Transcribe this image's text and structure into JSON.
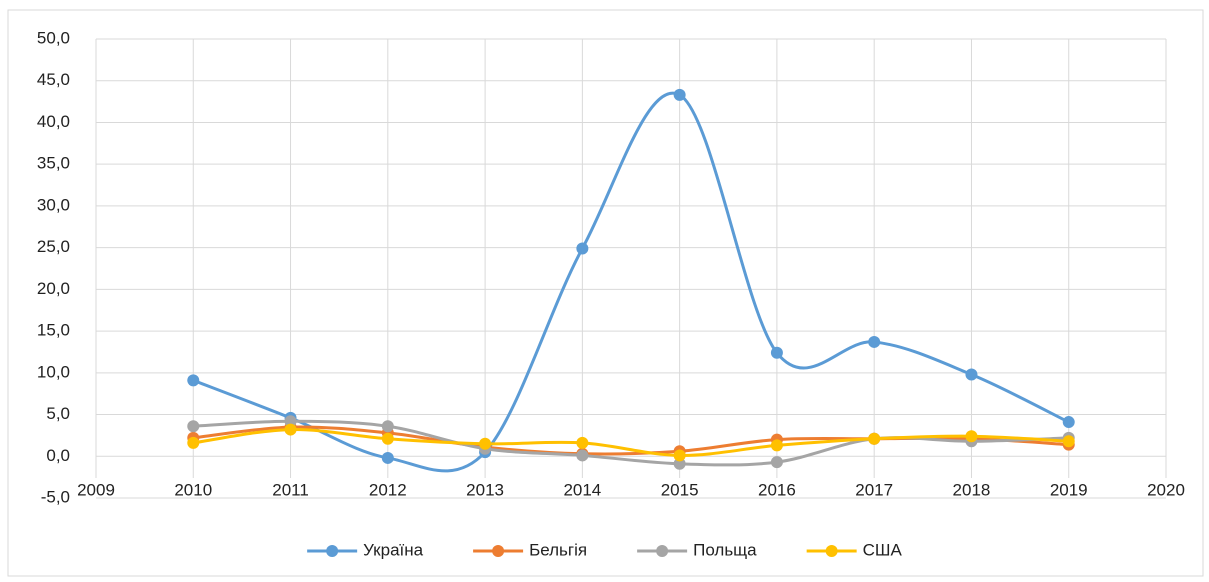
{
  "chart_data": {
    "type": "line",
    "x": [
      2010,
      2011,
      2012,
      2013,
      2014,
      2015,
      2016,
      2017,
      2018,
      2019
    ],
    "series": [
      {
        "name": "Україна",
        "color": "#5b9bd5",
        "values": [
          9.1,
          4.6,
          -0.2,
          0.5,
          24.9,
          43.3,
          12.4,
          13.7,
          9.8,
          4.1
        ]
      },
      {
        "name": "Бельгія",
        "color": "#ed7d31",
        "values": [
          2.2,
          3.5,
          2.8,
          1.1,
          0.3,
          0.6,
          2.0,
          2.1,
          2.1,
          1.4
        ]
      },
      {
        "name": "Польща",
        "color": "#a5a5a5",
        "values": [
          3.6,
          4.2,
          3.6,
          0.9,
          0.1,
          -0.9,
          -0.7,
          2.1,
          1.8,
          2.2
        ]
      },
      {
        "name": "США",
        "color": "#ffc000",
        "values": [
          1.6,
          3.2,
          2.1,
          1.5,
          1.6,
          0.1,
          1.3,
          2.1,
          2.4,
          1.8
        ]
      }
    ],
    "xlim": [
      2009,
      2020
    ],
    "xticks": [
      2009,
      2010,
      2011,
      2012,
      2013,
      2014,
      2015,
      2016,
      2017,
      2018,
      2019,
      2020
    ],
    "ylim": [
      -5,
      50
    ],
    "yticks": [
      {
        "value": -5,
        "label": "-5,0"
      },
      {
        "value": 0,
        "label": "0,0"
      },
      {
        "value": 5,
        "label": "5,0"
      },
      {
        "value": 10,
        "label": "10,0"
      },
      {
        "value": 15,
        "label": "15,0"
      },
      {
        "value": 20,
        "label": "20,0"
      },
      {
        "value": 25,
        "label": "25,0"
      },
      {
        "value": 30,
        "label": "30,0"
      },
      {
        "value": 35,
        "label": "35,0"
      },
      {
        "value": 40,
        "label": "40,0"
      },
      {
        "value": 45,
        "label": "45,0"
      },
      {
        "value": 50,
        "label": "50,0"
      }
    ],
    "grid": true,
    "smooth": true,
    "legend": "bottom"
  }
}
